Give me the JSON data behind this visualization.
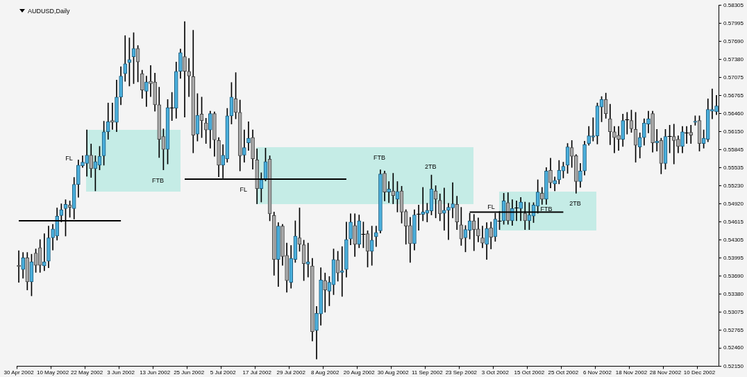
{
  "chart_data": {
    "type": "candlestick",
    "title": "AUDUSD,Daily",
    "categories": [
      "30 Apr 2002",
      null,
      null,
      null,
      null,
      null,
      null,
      null,
      "10 May 2002",
      null,
      null,
      null,
      null,
      null,
      null,
      null,
      "22 May 2002",
      null,
      null,
      null,
      null,
      null,
      null,
      null,
      "3 Jun 2002",
      null,
      null,
      null,
      null,
      null,
      null,
      null,
      "13 Jun 2002",
      null,
      null,
      null,
      null,
      null,
      null,
      null,
      "25 Jun 2002",
      null,
      null,
      null,
      null,
      null,
      null,
      null,
      "5 Jul 2002",
      null,
      null,
      null,
      null,
      null,
      null,
      null,
      "17 Jul 2002",
      null,
      null,
      null,
      null,
      null,
      null,
      null,
      "29 Jul 2002",
      null,
      null,
      null,
      null,
      null,
      null,
      null,
      "8 Aug 2002",
      null,
      null,
      null,
      null,
      null,
      null,
      null,
      "20 Aug 2002",
      null,
      null,
      null,
      null,
      null,
      null,
      null,
      "30 Aug 2002",
      null,
      null,
      null,
      null,
      null,
      null,
      null,
      "11 Sep 2002",
      null,
      null,
      null,
      null,
      null,
      null,
      null,
      "23 Sep 2002",
      null,
      null,
      null,
      null,
      null,
      null,
      null,
      "3 Oct 2002",
      null,
      null,
      null,
      null,
      null,
      null,
      null,
      "15 Oct 2002",
      null,
      null,
      null,
      null,
      null,
      null,
      null,
      "25 Oct 2002",
      null,
      null,
      null,
      null,
      null,
      null,
      null,
      "6 Nov 2002",
      null,
      null,
      null,
      null,
      null,
      null,
      null,
      "18 Nov 2002",
      null,
      null,
      null,
      null,
      null,
      null,
      null,
      "28 Nov 2002",
      null,
      null,
      null,
      null,
      null,
      null,
      null,
      "10 Dec 2002",
      null,
      null,
      null,
      null
    ],
    "ohlc": [
      [
        0.5387,
        0.5412,
        0.5358,
        0.5385
      ],
      [
        0.538,
        0.5409,
        0.5365,
        0.54
      ],
      [
        0.54,
        0.5409,
        0.5345,
        0.5359
      ],
      [
        0.5359,
        0.5406,
        0.5335,
        0.5393
      ],
      [
        0.5408,
        0.5415,
        0.5375,
        0.5387
      ],
      [
        0.5417,
        0.5431,
        0.5375,
        0.5387
      ],
      [
        0.5386,
        0.5441,
        0.5378,
        0.5393
      ],
      [
        0.5394,
        0.5454,
        0.5383,
        0.5434
      ],
      [
        0.5434,
        0.5457,
        0.5413,
        0.5449
      ],
      [
        0.5437,
        0.5485,
        0.543,
        0.5471
      ],
      [
        0.5472,
        0.5492,
        0.5461,
        0.5482
      ],
      [
        0.5484,
        0.5499,
        0.5437,
        0.5491
      ],
      [
        0.549,
        0.5497,
        0.5469,
        0.5486
      ],
      [
        0.5484,
        0.5537,
        0.5466,
        0.5525
      ],
      [
        0.5525,
        0.5567,
        0.5503,
        0.5558
      ],
      [
        0.5557,
        0.5574,
        0.5554,
        0.5563
      ],
      [
        0.5561,
        0.5618,
        0.5539,
        0.5575
      ],
      [
        0.5575,
        0.5594,
        0.5537,
        0.5552
      ],
      [
        0.5552,
        0.5574,
        0.5514,
        0.5564
      ],
      [
        0.5558,
        0.559,
        0.555,
        0.5573
      ],
      [
        0.5574,
        0.5633,
        0.5558,
        0.5615
      ],
      [
        0.5615,
        0.5664,
        0.5602,
        0.5632
      ],
      [
        0.5634,
        0.5664,
        0.5619,
        0.5631
      ],
      [
        0.5631,
        0.5703,
        0.5615,
        0.5674
      ],
      [
        0.5674,
        0.5726,
        0.5661,
        0.571
      ],
      [
        0.5714,
        0.5779,
        0.5701,
        0.5731
      ],
      [
        0.5733,
        0.5775,
        0.5693,
        0.5738
      ],
      [
        0.5743,
        0.5784,
        0.5697,
        0.5757
      ],
      [
        0.5757,
        0.5762,
        0.57,
        0.5734
      ],
      [
        0.5714,
        0.572,
        0.5672,
        0.5686
      ],
      [
        0.5684,
        0.571,
        0.5658,
        0.57
      ],
      [
        0.5701,
        0.5728,
        0.5675,
        0.5697
      ],
      [
        0.57,
        0.5715,
        0.565,
        0.5661
      ],
      [
        0.5661,
        0.5691,
        0.5571,
        0.5602
      ],
      [
        0.5607,
        0.562,
        0.555,
        0.5585
      ],
      [
        0.5585,
        0.567,
        0.556,
        0.5656
      ],
      [
        0.5656,
        0.5682,
        0.5634,
        0.5656
      ],
      [
        0.5655,
        0.5734,
        0.5638,
        0.5718
      ],
      [
        0.5718,
        0.5756,
        0.5706,
        0.575
      ],
      [
        0.5743,
        0.5803,
        0.564,
        0.5718
      ],
      [
        0.5718,
        0.574,
        0.5675,
        0.571
      ],
      [
        0.5709,
        0.5788,
        0.5579,
        0.5609
      ],
      [
        0.5611,
        0.568,
        0.5599,
        0.5643
      ],
      [
        0.5645,
        0.5674,
        0.5605,
        0.5634
      ],
      [
        0.563,
        0.5638,
        0.5595,
        0.5618
      ],
      [
        0.5618,
        0.565,
        0.5587,
        0.5646
      ],
      [
        0.5646,
        0.5649,
        0.5573,
        0.5601
      ],
      [
        0.56,
        0.5605,
        0.5538,
        0.5558
      ],
      [
        0.5558,
        0.5593,
        0.5536,
        0.5575
      ],
      [
        0.5569,
        0.5655,
        0.5563,
        0.5642
      ],
      [
        0.5642,
        0.5699,
        0.5628,
        0.5674
      ],
      [
        0.5671,
        0.5716,
        0.5637,
        0.5648
      ],
      [
        0.5648,
        0.5669,
        0.5548,
        0.5574
      ],
      [
        0.5575,
        0.5618,
        0.5563,
        0.5588
      ],
      [
        0.5596,
        0.5632,
        0.5583,
        0.5604
      ],
      [
        0.5605,
        0.5618,
        0.5551,
        0.5569
      ],
      [
        0.5567,
        0.5586,
        0.5492,
        0.5518
      ],
      [
        0.5518,
        0.5545,
        0.5495,
        0.5533
      ],
      [
        0.5533,
        0.5587,
        0.5531,
        0.5564
      ],
      [
        0.5568,
        0.5574,
        0.5463,
        0.5475
      ],
      [
        0.5472,
        0.5478,
        0.537,
        0.5397
      ],
      [
        0.5397,
        0.546,
        0.5351,
        0.5454
      ],
      [
        0.5454,
        0.5457,
        0.5387,
        0.5402
      ],
      [
        0.5404,
        0.5425,
        0.5341,
        0.5361
      ],
      [
        0.5358,
        0.5421,
        0.5348,
        0.5399
      ],
      [
        0.5397,
        0.5463,
        0.5392,
        0.5437
      ],
      [
        0.5434,
        0.5485,
        0.5411,
        0.5423
      ],
      [
        0.5422,
        0.543,
        0.5361,
        0.539
      ],
      [
        0.5389,
        0.5425,
        0.5367,
        0.5393
      ],
      [
        0.5386,
        0.5399,
        0.5258,
        0.5274
      ],
      [
        0.5276,
        0.5317,
        0.5227,
        0.5305
      ],
      [
        0.5304,
        0.5383,
        0.5285,
        0.5362
      ],
      [
        0.5361,
        0.5374,
        0.5307,
        0.5345
      ],
      [
        0.5343,
        0.5368,
        0.5318,
        0.5358
      ],
      [
        0.5354,
        0.5415,
        0.5337,
        0.5397
      ],
      [
        0.5396,
        0.5411,
        0.536,
        0.5374
      ],
      [
        0.5375,
        0.5419,
        0.5334,
        0.5378
      ],
      [
        0.538,
        0.5461,
        0.5367,
        0.5431
      ],
      [
        0.5432,
        0.5475,
        0.5422,
        0.5461
      ],
      [
        0.5455,
        0.5475,
        0.5402,
        0.5423
      ],
      [
        0.5423,
        0.5473,
        0.5417,
        0.5463
      ],
      [
        0.5441,
        0.5461,
        0.5417,
        0.5441
      ],
      [
        0.5441,
        0.5446,
        0.5384,
        0.5411
      ],
      [
        0.5411,
        0.5454,
        0.5387,
        0.543
      ],
      [
        0.5436,
        0.5454,
        0.5419,
        0.5443
      ],
      [
        0.5446,
        0.555,
        0.5442,
        0.5543
      ],
      [
        0.5544,
        0.5548,
        0.5497,
        0.5512
      ],
      [
        0.5512,
        0.553,
        0.5494,
        0.5517
      ],
      [
        0.5514,
        0.5544,
        0.5492,
        0.5506
      ],
      [
        0.55,
        0.553,
        0.5478,
        0.5513
      ],
      [
        0.5514,
        0.5522,
        0.5459,
        0.5478
      ],
      [
        0.5479,
        0.5482,
        0.5423,
        0.5454
      ],
      [
        0.5455,
        0.5469,
        0.5392,
        0.5424
      ],
      [
        0.5424,
        0.5482,
        0.5413,
        0.5473
      ],
      [
        0.5475,
        0.549,
        0.5447,
        0.5475
      ],
      [
        0.5474,
        0.552,
        0.5463,
        0.5478
      ],
      [
        0.5476,
        0.5493,
        0.5461,
        0.5481
      ],
      [
        0.548,
        0.5541,
        0.5473,
        0.5517
      ],
      [
        0.5514,
        0.5523,
        0.5468,
        0.55
      ],
      [
        0.5498,
        0.5509,
        0.5463,
        0.5475
      ],
      [
        0.5476,
        0.5519,
        0.5447,
        0.5481
      ],
      [
        0.5481,
        0.5493,
        0.5431,
        0.5486
      ],
      [
        0.5485,
        0.5528,
        0.5468,
        0.5492
      ],
      [
        0.5491,
        0.5505,
        0.5448,
        0.5461
      ],
      [
        0.5456,
        0.5486,
        0.5421,
        0.5432
      ],
      [
        0.5434,
        0.5455,
        0.541,
        0.5448
      ],
      [
        0.5447,
        0.5476,
        0.5432,
        0.5463
      ],
      [
        0.5463,
        0.5474,
        0.5412,
        0.5448
      ],
      [
        0.5449,
        0.5468,
        0.5427,
        0.5437
      ],
      [
        0.5434,
        0.5454,
        0.5417,
        0.5425
      ],
      [
        0.5423,
        0.546,
        0.5397,
        0.545
      ],
      [
        0.5451,
        0.5461,
        0.5415,
        0.5435
      ],
      [
        0.5436,
        0.5476,
        0.5428,
        0.5466
      ],
      [
        0.5463,
        0.5479,
        0.5448,
        0.5463
      ],
      [
        0.5463,
        0.551,
        0.5457,
        0.5497
      ],
      [
        0.5494,
        0.5511,
        0.5457,
        0.5463
      ],
      [
        0.5463,
        0.5499,
        0.5455,
        0.5484
      ],
      [
        0.5485,
        0.5497,
        0.5463,
        0.5485
      ],
      [
        0.5484,
        0.5503,
        0.5463,
        0.5495
      ],
      [
        0.5476,
        0.5495,
        0.5448,
        0.5463
      ],
      [
        0.5463,
        0.5494,
        0.5448,
        0.5473
      ],
      [
        0.5471,
        0.5494,
        0.546,
        0.549
      ],
      [
        0.5488,
        0.5533,
        0.5476,
        0.5512
      ],
      [
        0.551,
        0.552,
        0.5491,
        0.55
      ],
      [
        0.55,
        0.5554,
        0.5491,
        0.5548
      ],
      [
        0.5549,
        0.557,
        0.5519,
        0.5528
      ],
      [
        0.5526,
        0.5538,
        0.5514,
        0.5532
      ],
      [
        0.5533,
        0.5566,
        0.5526,
        0.5549
      ],
      [
        0.5548,
        0.5563,
        0.5536,
        0.5556
      ],
      [
        0.5558,
        0.5595,
        0.5544,
        0.5589
      ],
      [
        0.5588,
        0.56,
        0.5554,
        0.5573
      ],
      [
        0.5574,
        0.5576,
        0.551,
        0.553
      ],
      [
        0.553,
        0.5561,
        0.552,
        0.5548
      ],
      [
        0.5548,
        0.5599,
        0.5541,
        0.5593
      ],
      [
        0.5595,
        0.5624,
        0.5592,
        0.5608
      ],
      [
        0.5606,
        0.5639,
        0.5599,
        0.5608
      ],
      [
        0.5608,
        0.5664,
        0.5594,
        0.5659
      ],
      [
        0.5657,
        0.5675,
        0.5632,
        0.567
      ],
      [
        0.567,
        0.5681,
        0.5638,
        0.5646
      ],
      [
        0.5637,
        0.5662,
        0.5593,
        0.5615
      ],
      [
        0.5615,
        0.5624,
        0.5579,
        0.5605
      ],
      [
        0.5609,
        0.5624,
        0.5583,
        0.5602
      ],
      [
        0.5602,
        0.5645,
        0.559,
        0.5634
      ],
      [
        0.5636,
        0.5648,
        0.5611,
        0.5636
      ],
      [
        0.5634,
        0.5652,
        0.5614,
        0.562
      ],
      [
        0.5619,
        0.5648,
        0.5563,
        0.5592
      ],
      [
        0.5589,
        0.5613,
        0.557,
        0.5605
      ],
      [
        0.5605,
        0.5637,
        0.5592,
        0.563
      ],
      [
        0.5628,
        0.565,
        0.5613,
        0.5637
      ],
      [
        0.5646,
        0.565,
        0.558,
        0.5596
      ],
      [
        0.5596,
        0.5619,
        0.5582,
        0.5599
      ],
      [
        0.56,
        0.5604,
        0.5543,
        0.5561
      ],
      [
        0.5561,
        0.5619,
        0.5551,
        0.5607
      ],
      [
        0.5607,
        0.5626,
        0.5579,
        0.5607
      ],
      [
        0.5607,
        0.5628,
        0.556,
        0.56
      ],
      [
        0.5602,
        0.5608,
        0.5579,
        0.559
      ],
      [
        0.559,
        0.5624,
        0.5579,
        0.5615
      ],
      [
        0.5614,
        0.5624,
        0.5595,
        0.5614
      ],
      [
        0.5614,
        0.5626,
        0.5595,
        0.5609
      ],
      [
        0.5631,
        0.5642,
        0.5626,
        0.5633
      ],
      [
        0.5634,
        0.5642,
        0.5582,
        0.5595
      ],
      [
        0.5595,
        0.5618,
        0.5587,
        0.5604
      ],
      [
        0.5602,
        0.5671,
        0.5598,
        0.5653
      ],
      [
        0.565,
        0.5688,
        0.5637,
        0.5653
      ],
      [
        0.5649,
        0.5677,
        0.5644,
        0.5659
      ]
    ],
    "series": [
      {
        "type": "line",
        "color": "#000000",
        "values": [
          0.5463,
          0.5463,
          0.5463,
          0.5463,
          0.5463,
          0.5463,
          0.5463,
          0.5463,
          0.5463,
          0.5463,
          0.5463,
          0.5463,
          0.5463,
          0.5463,
          0.5463,
          0.5463,
          0.5463,
          0.5463,
          0.5463,
          0.5463,
          0.5463,
          0.5463,
          0.5463,
          0.5463,
          0.5463,
          null,
          null,
          null,
          null,
          null,
          null,
          null,
          null,
          null,
          null,
          null,
          null,
          null,
          null,
          null,
          null,
          null,
          null,
          null,
          null,
          null,
          null,
          null,
          null,
          null,
          null,
          null,
          null,
          null,
          null,
          null,
          null,
          null,
          null,
          null,
          null,
          null,
          null,
          null,
          null,
          null,
          null,
          null,
          null,
          null,
          null,
          null,
          null,
          null,
          null,
          null,
          null,
          null,
          null,
          null,
          null,
          null,
          null,
          null,
          null,
          null,
          null,
          null,
          null,
          null,
          null,
          null,
          null,
          null,
          null,
          null,
          null,
          null,
          null,
          null,
          null,
          null,
          null,
          null,
          null,
          null,
          null,
          null,
          null,
          null,
          null,
          null,
          null,
          null,
          null,
          null,
          null,
          null,
          null,
          null,
          null,
          null,
          null,
          null,
          null,
          null,
          null,
          null,
          null,
          null,
          null,
          null,
          null,
          null,
          null,
          null,
          null,
          null,
          null,
          null,
          null,
          null,
          null,
          null,
          null,
          null,
          null,
          null,
          null,
          null,
          null,
          null,
          null,
          null,
          null,
          null,
          null,
          null,
          null,
          null,
          null,
          null,
          null,
          null,
          null
        ]
      },
      {
        "type": "line",
        "color": "#000000",
        "values": [
          null,
          null,
          null,
          null,
          null,
          null,
          null,
          null,
          null,
          null,
          null,
          null,
          null,
          null,
          null,
          null,
          null,
          null,
          null,
          null,
          null,
          null,
          null,
          null,
          null,
          null,
          null,
          null,
          null,
          null,
          null,
          null,
          null,
          null,
          null,
          null,
          null,
          null,
          null,
          0.5534,
          0.5534,
          0.5534,
          0.5534,
          0.5534,
          0.5534,
          0.5534,
          0.5534,
          0.5534,
          0.5534,
          0.5534,
          0.5534,
          0.5534,
          0.5534,
          0.5534,
          0.5534,
          0.5534,
          0.5534,
          0.5534,
          0.5534,
          0.5534,
          0.5534,
          0.5534,
          0.5534,
          0.5534,
          0.5534,
          0.5534,
          0.5534,
          0.5534,
          0.5534,
          0.5534,
          0.5534,
          0.5534,
          0.5534,
          0.5534,
          0.5534,
          0.5534,
          0.5534,
          0.5534,
          null,
          null,
          null,
          null,
          null,
          null,
          null,
          null,
          null,
          null,
          null,
          null,
          null,
          null,
          null,
          null,
          null,
          null,
          null,
          null,
          null,
          null,
          null,
          null,
          null,
          null,
          null,
          null,
          null,
          null,
          null,
          null,
          null,
          null,
          null,
          null,
          null,
          null,
          null,
          null,
          null,
          null,
          null,
          null,
          null,
          null,
          null,
          null,
          null,
          null,
          null,
          null,
          null,
          null,
          null,
          null,
          null,
          null,
          null,
          null,
          null,
          null,
          null,
          null,
          null,
          null,
          null,
          null,
          null,
          null,
          null,
          null,
          null,
          null,
          null,
          null,
          null,
          null,
          null,
          null,
          null,
          null,
          null,
          null,
          null,
          null,
          null
        ]
      },
      {
        "type": "line",
        "color": "#000000",
        "values": [
          null,
          null,
          null,
          null,
          null,
          null,
          null,
          null,
          null,
          null,
          null,
          null,
          null,
          null,
          null,
          null,
          null,
          null,
          null,
          null,
          null,
          null,
          null,
          null,
          null,
          null,
          null,
          null,
          null,
          null,
          null,
          null,
          null,
          null,
          null,
          null,
          null,
          null,
          null,
          null,
          null,
          null,
          null,
          null,
          null,
          null,
          null,
          null,
          null,
          null,
          null,
          null,
          null,
          null,
          null,
          null,
          null,
          null,
          null,
          null,
          null,
          null,
          null,
          null,
          null,
          null,
          null,
          null,
          null,
          null,
          null,
          null,
          null,
          null,
          null,
          null,
          null,
          null,
          null,
          null,
          null,
          null,
          null,
          null,
          null,
          null,
          null,
          null,
          null,
          null,
          null,
          null,
          null,
          null,
          null,
          null,
          null,
          null,
          null,
          null,
          null,
          null,
          null,
          null,
          null,
          null,
          0.5478,
          0.5478,
          0.5478,
          0.5478,
          0.5478,
          0.5478,
          0.5478,
          0.5478,
          0.5478,
          0.5478,
          0.5478,
          0.5478,
          0.5478,
          0.5478,
          0.5478,
          0.5478,
          0.5478,
          0.5478,
          0.5478,
          0.5478,
          0.5478,
          0.5478,
          0.5478,
          null,
          null,
          null,
          null,
          null,
          null,
          null,
          null,
          null,
          null,
          null,
          null,
          null,
          null,
          null,
          null,
          null,
          null,
          null,
          null,
          null,
          null,
          null,
          null,
          null,
          null,
          null,
          null,
          null,
          null,
          null,
          null,
          null,
          null,
          null,
          null
        ]
      }
    ],
    "ylim": [
      0.5215,
      0.58305
    ],
    "yticks": [
      {
        "value": 0.5215,
        "label": "0.52150"
      },
      {
        "value": 0.5246,
        "label": "0.52460"
      },
      0.52765,
      0.53075,
      {
        "value": 0.5338,
        "label": "0.53380"
      },
      {
        "value": 0.5369,
        "label": "0.53690"
      },
      0.53995,
      0.54305,
      0.54615,
      {
        "value": 0.5492,
        "label": "0.54920"
      },
      {
        "value": 0.5523,
        "label": "0.55230"
      },
      0.55535,
      0.55845,
      {
        "value": 0.5615,
        "label": "0.56150"
      },
      {
        "value": 0.5646,
        "label": "0.56460"
      },
      0.56765,
      0.57075,
      {
        "value": 0.5738,
        "label": "0.57380"
      },
      {
        "value": 0.5769,
        "label": "0.57690"
      },
      0.57995,
      0.58305
    ],
    "annotations": [
      "FL",
      "FTB",
      "FL",
      "FTB",
      "2TB",
      "FL",
      "FTB",
      "2TB"
    ],
    "grid": false,
    "legend": false
  }
}
